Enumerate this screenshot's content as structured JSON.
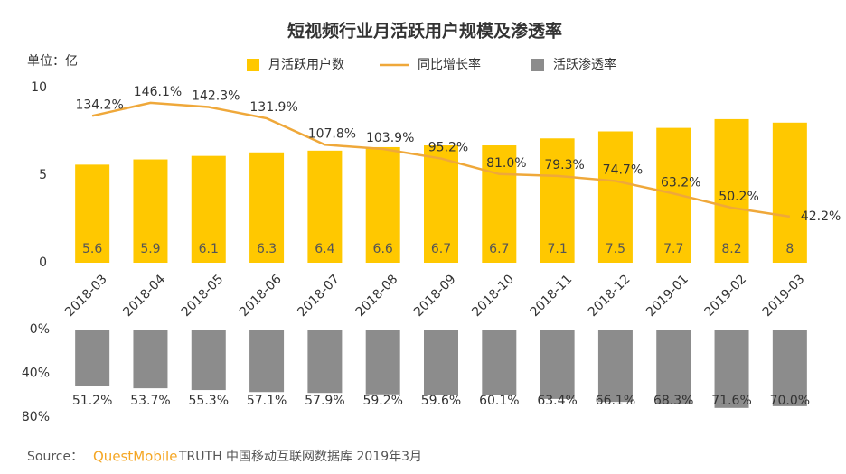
{
  "chart_data": [
    {
      "type": "bar",
      "title": "短视频行业月活跃用户规模及渗透率",
      "unit": "单位：亿",
      "categories": [
        "2018-03",
        "2018-04",
        "2018-05",
        "2018-06",
        "2018-07",
        "2018-08",
        "2018-09",
        "2018-10",
        "2018-11",
        "2018-12",
        "2019-01",
        "2019-02",
        "2019-03"
      ],
      "series": [
        {
          "name": "月活跃用户数",
          "color": "#FFC800",
          "values": [
            5.6,
            5.9,
            6.1,
            6.3,
            6.4,
            6.6,
            6.7,
            6.7,
            7.1,
            7.5,
            7.7,
            8.2,
            8.0
          ]
        },
        {
          "name": "同比增长率",
          "type": "line",
          "axis": "y2",
          "color": "#EFA83A",
          "values": [
            134.2,
            146.1,
            142.3,
            131.9,
            107.8,
            103.9,
            95.2,
            81.0,
            79.3,
            74.7,
            63.2,
            50.2,
            42.2
          ],
          "value_labels": [
            "134.2%",
            "146.1%",
            "142.3%",
            "131.9%",
            "107.8%",
            "103.9%",
            "95.2%",
            "81.0%",
            "79.3%",
            "74.7%",
            "63.2%",
            "50.2%",
            "42.2%"
          ]
        }
      ],
      "ylim": [
        0,
        10
      ],
      "yticks": [
        0,
        5,
        10
      ],
      "y2lim": [
        0,
        160
      ],
      "legend": "top"
    },
    {
      "type": "bar",
      "inverted": true,
      "categories": [
        "2018-03",
        "2018-04",
        "2018-05",
        "2018-06",
        "2018-07",
        "2018-08",
        "2018-09",
        "2018-10",
        "2018-11",
        "2018-12",
        "2019-01",
        "2019-02",
        "2019-03"
      ],
      "series": [
        {
          "name": "活跃渗透率",
          "color": "#8C8C8C",
          "values": [
            51.2,
            53.7,
            55.3,
            57.1,
            57.9,
            59.2,
            59.6,
            60.1,
            63.4,
            66.1,
            68.3,
            71.6,
            70.0
          ],
          "value_labels": [
            "51.2%",
            "53.7%",
            "55.3%",
            "57.1%",
            "57.9%",
            "59.2%",
            "59.6%",
            "60.1%",
            "63.4%",
            "66.1%",
            "68.3%",
            "71.6%",
            "70.0%"
          ]
        }
      ],
      "ylim": [
        0,
        80
      ],
      "yticks": [
        {
          "value": 0,
          "label": "0%"
        },
        {
          "value": 40,
          "label": "40%"
        },
        {
          "value": 80,
          "label": "80%"
        }
      ]
    }
  ],
  "source": {
    "label": "Source：",
    "brand": "QuestMobile",
    "text": "TRUTH 中国移动互联网数据库 2019年3月"
  }
}
